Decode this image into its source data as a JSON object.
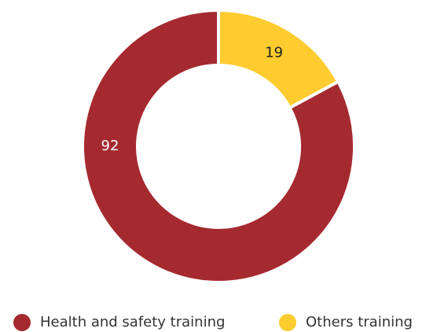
{
  "chart_data": {
    "type": "pie",
    "categories": [
      "Health and safety training",
      "Others training"
    ],
    "values": [
      92,
      19
    ],
    "colors": [
      "#a52a30",
      "#fecc2f"
    ]
  }
}
